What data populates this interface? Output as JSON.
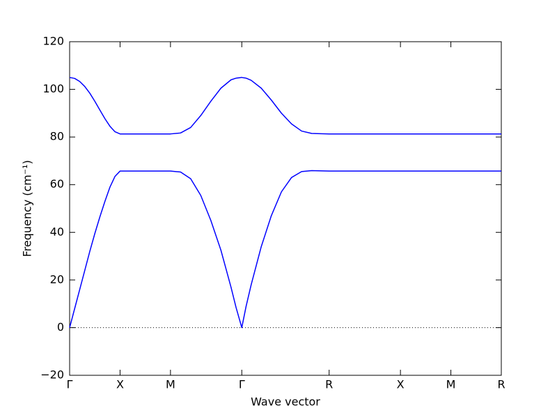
{
  "chart_data": {
    "type": "line",
    "xlabel": "Wave vector",
    "ylabel": "Frequency (cm⁻¹)",
    "x": [
      0,
      0.05,
      0.1,
      0.15,
      0.2,
      0.25,
      0.3,
      0.35,
      0.4,
      0.45,
      0.5,
      0.75,
      1.0,
      1.1,
      1.2,
      1.3,
      1.4,
      1.5,
      1.6,
      1.65,
      1.707,
      1.75,
      1.8,
      1.9,
      2.0,
      2.1,
      2.2,
      2.3,
      2.4,
      2.573,
      3.28,
      3.78,
      4.28
    ],
    "series": [
      {
        "color": "#0000ff",
        "values": [
          0,
          8,
          16,
          24,
          32,
          39.5,
          46.5,
          53,
          59,
          63.5,
          65.7,
          65.7,
          65.7,
          65.3,
          62.5,
          55.5,
          45,
          32.5,
          17,
          8.5,
          0,
          9,
          18,
          34,
          47,
          57,
          63,
          65.5,
          65.9,
          65.7,
          65.7,
          65.7,
          65.7
        ]
      },
      {
        "color": "#0000ff",
        "values": [
          105,
          104.6,
          103.3,
          101.2,
          98.4,
          95,
          91.3,
          87.7,
          84.5,
          82.2,
          81.3,
          81.3,
          81.3,
          81.7,
          84,
          89,
          95,
          100.5,
          104,
          104.7,
          105,
          104.7,
          103.8,
          100.5,
          95.5,
          90,
          85.5,
          82.5,
          81.5,
          81.3,
          81.3,
          81.3,
          81.3
        ]
      }
    ],
    "xlim": [
      0,
      4.28
    ],
    "xticks": [
      {
        "value": 0,
        "label": "Γ"
      },
      {
        "value": 0.5,
        "label": "X"
      },
      {
        "value": 1.0,
        "label": "M"
      },
      {
        "value": 1.707,
        "label": "Γ"
      },
      {
        "value": 2.573,
        "label": "R"
      },
      {
        "value": 3.28,
        "label": "X"
      },
      {
        "value": 3.78,
        "label": "M"
      },
      {
        "value": 4.28,
        "label": "R"
      }
    ],
    "ylim": [
      -20,
      120
    ],
    "yticks": [
      {
        "value": -20,
        "label": "−20"
      },
      0,
      20,
      40,
      60,
      80,
      100,
      120
    ],
    "zero_line": true
  }
}
